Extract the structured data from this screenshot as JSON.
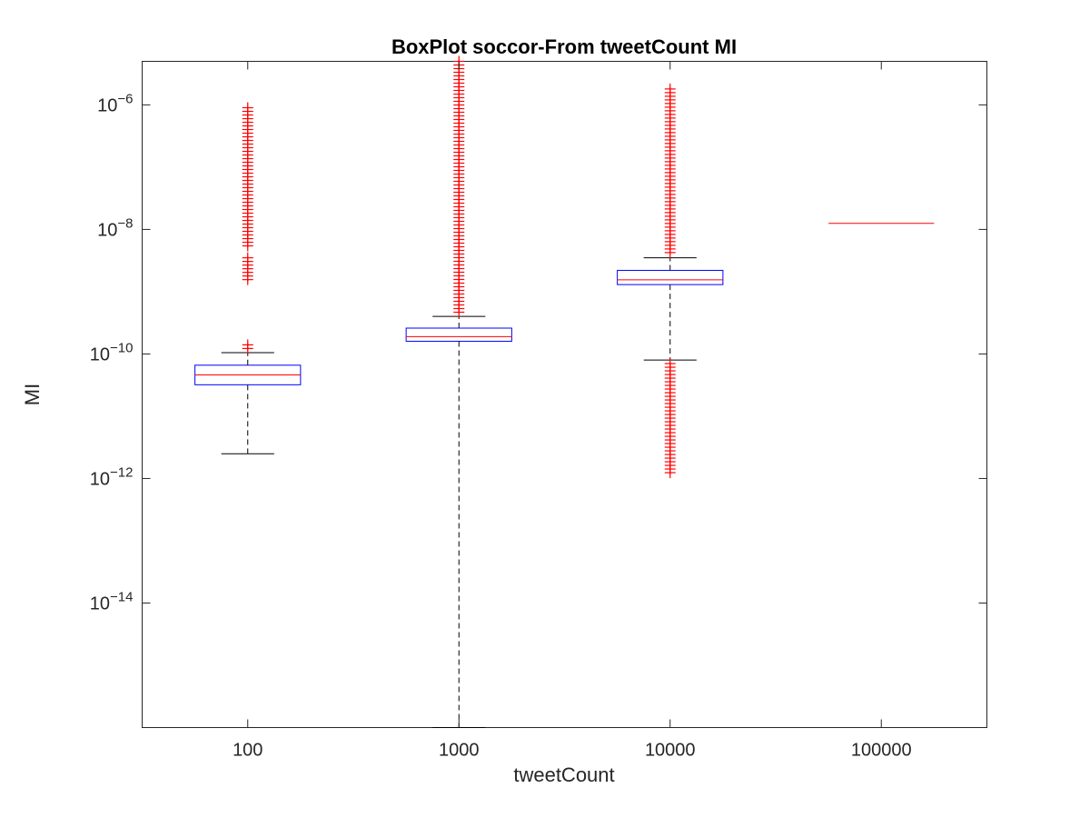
{
  "chart_data": {
    "type": "box",
    "title": "BoxPlot soccor-From tweetCount MI",
    "xlabel": "tweetCount",
    "ylabel": "MI",
    "y_scale": "log",
    "ylim": [
      1e-16,
      5e-06
    ],
    "y_ticks": [
      {
        "exp": "-6",
        "value": 1e-06
      },
      {
        "exp": "-8",
        "value": 1e-08
      },
      {
        "exp": "-10",
        "value": 1e-10
      },
      {
        "exp": "-12",
        "value": 1e-12
      },
      {
        "exp": "-14",
        "value": 1e-14
      }
    ],
    "y_tick_base": "10",
    "categories": [
      "100",
      "1000",
      "10000",
      "100000"
    ],
    "colors": {
      "box": "#0000ff",
      "median": "#ff0000",
      "whisker": "#000000",
      "outlier": "#ff0000"
    },
    "boxes": [
      {
        "category": "100",
        "lower_whisker": 2.5e-12,
        "q1": 3.2e-11,
        "median": 4.6e-11,
        "q3": 6.6e-11,
        "upper_whisker": 1.05e-10,
        "outlier_ranges": [
          [
            1.15e-10,
            1.4e-10
          ],
          [
            1.5e-09,
            3.5e-09
          ],
          [
            5e-09,
            9e-07
          ]
        ]
      },
      {
        "category": "1000",
        "lower_whisker": 1e-16,
        "q1": 1.6e-10,
        "median": 1.9e-10,
        "q3": 2.6e-10,
        "upper_whisker": 4e-10,
        "outlier_ranges": [
          [
            4.2e-10,
            5e-06
          ]
        ]
      },
      {
        "category": "10000",
        "lower_whisker": 8e-11,
        "q1": 1.3e-09,
        "median": 1.55e-09,
        "q3": 2.2e-09,
        "upper_whisker": 3.5e-09,
        "outlier_ranges": [
          [
            1.1e-12,
            7e-11
          ],
          [
            4e-09,
            1.8e-06
          ]
        ]
      },
      {
        "category": "100000",
        "lower_whisker": 1.25e-08,
        "q1": 1.25e-08,
        "median": 1.25e-08,
        "q3": 1.25e-08,
        "upper_whisker": 1.25e-08,
        "outlier_ranges": []
      }
    ]
  }
}
